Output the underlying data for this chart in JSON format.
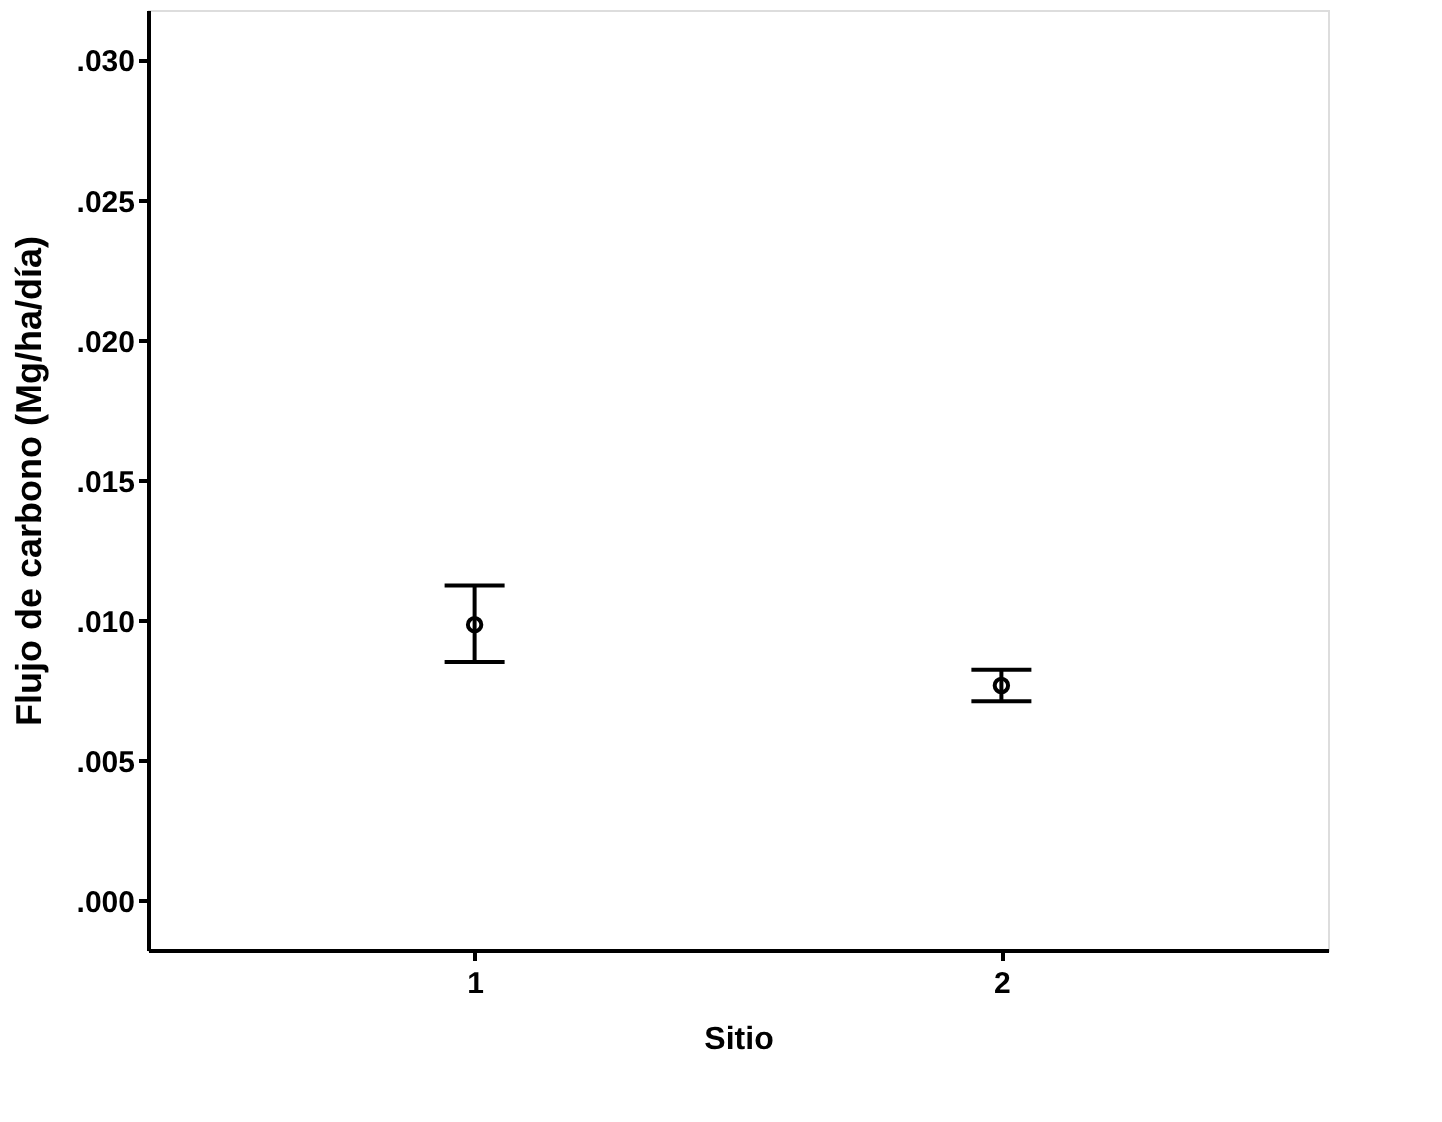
{
  "chart_data": {
    "type": "scatter",
    "xlabel": "Sitio",
    "ylabel": "Flujo de carbono (Mg/ha/día)",
    "categories": [
      "1",
      "2"
    ],
    "values": [
      0.00986,
      0.00769
    ],
    "errors": [
      [
        0.00853,
        0.01126
      ],
      [
        0.00713,
        0.00825
      ]
    ],
    "color": "#000000",
    "marker": "circle",
    "ylim": [
      -0.00175,
      0.0318
    ],
    "yticks": [
      {
        "value": 0,
        "label": ".000"
      },
      {
        "value": 0.005,
        "label": ".005"
      },
      {
        "value": 0.01,
        "label": ".010"
      },
      {
        "value": 0.015,
        "label": ".015"
      },
      {
        "value": 0.02,
        "label": ".020"
      },
      {
        "value": 0.025,
        "label": ".025"
      },
      {
        "value": 0.03,
        "label": ".030"
      }
    ],
    "grid": false
  }
}
